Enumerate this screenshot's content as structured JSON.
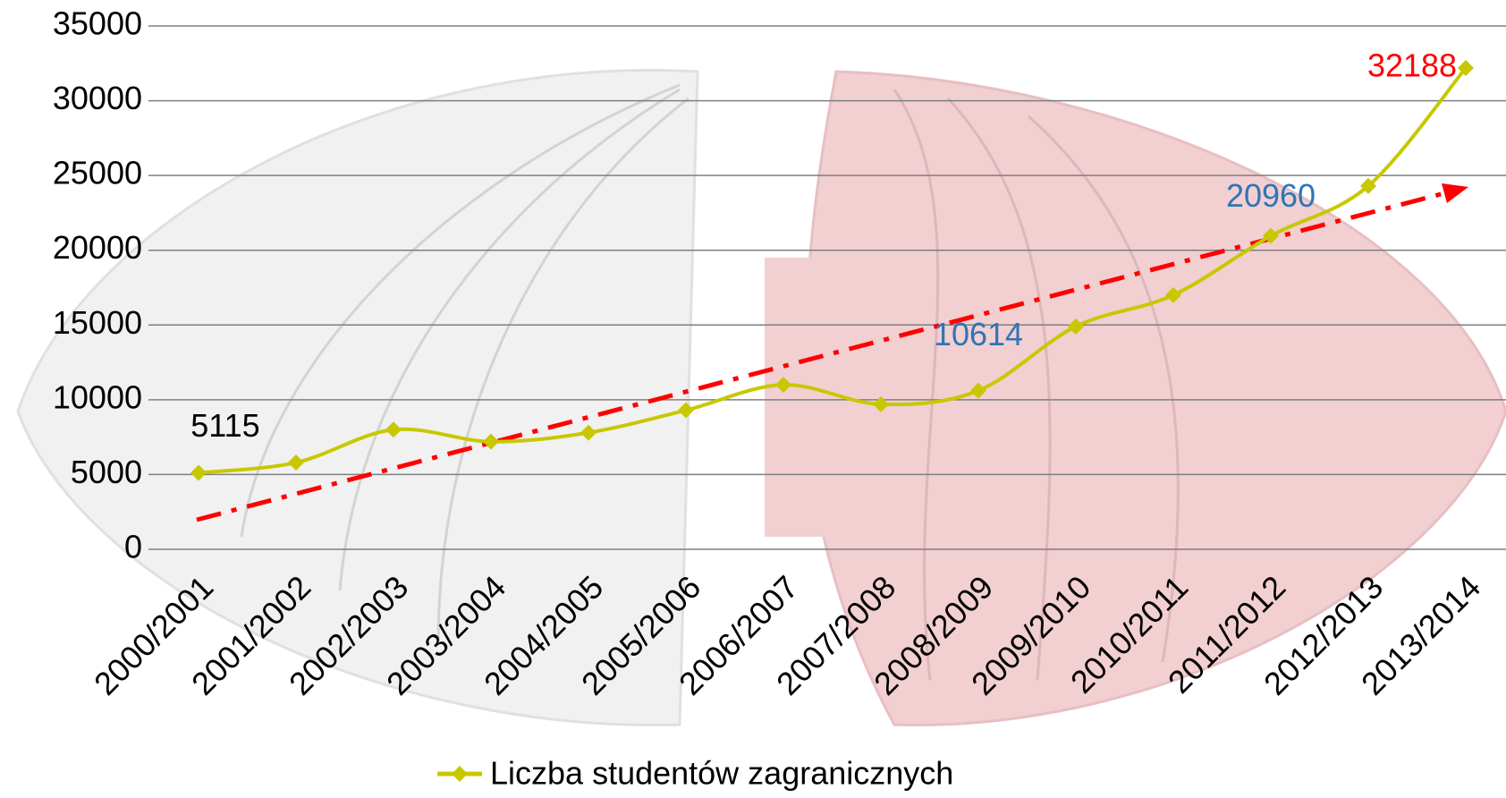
{
  "chart_data": {
    "type": "line",
    "categories": [
      "2000/2001",
      "2001/2002",
      "2002/2003",
      "2003/2004",
      "2004/2005",
      "2005/2006",
      "2006/2007",
      "2007/2008",
      "2008/2009",
      "2009/2010",
      "2010/2011",
      "2011/2012",
      "2012/2013",
      "2013/2014"
    ],
    "series": [
      {
        "name": "Liczba studentów zagranicznych",
        "color": "#c8c800",
        "values": [
          5115,
          5800,
          8000,
          7200,
          7800,
          9300,
          11000,
          9700,
          10614,
          14900,
          17000,
          20960,
          24300,
          32188
        ]
      }
    ],
    "data_labels": [
      {
        "index": 0,
        "color": "#000000"
      },
      {
        "index": 8,
        "color": "#2e75b6"
      },
      {
        "index": 11,
        "color": "#2e75b6"
      },
      {
        "index": 13,
        "color": "#ff0000"
      }
    ],
    "ylim": [
      0,
      35000
    ],
    "yticks": [
      0,
      5000,
      10000,
      15000,
      20000,
      25000,
      30000,
      35000
    ],
    "grid": true,
    "legend": "bottom"
  }
}
